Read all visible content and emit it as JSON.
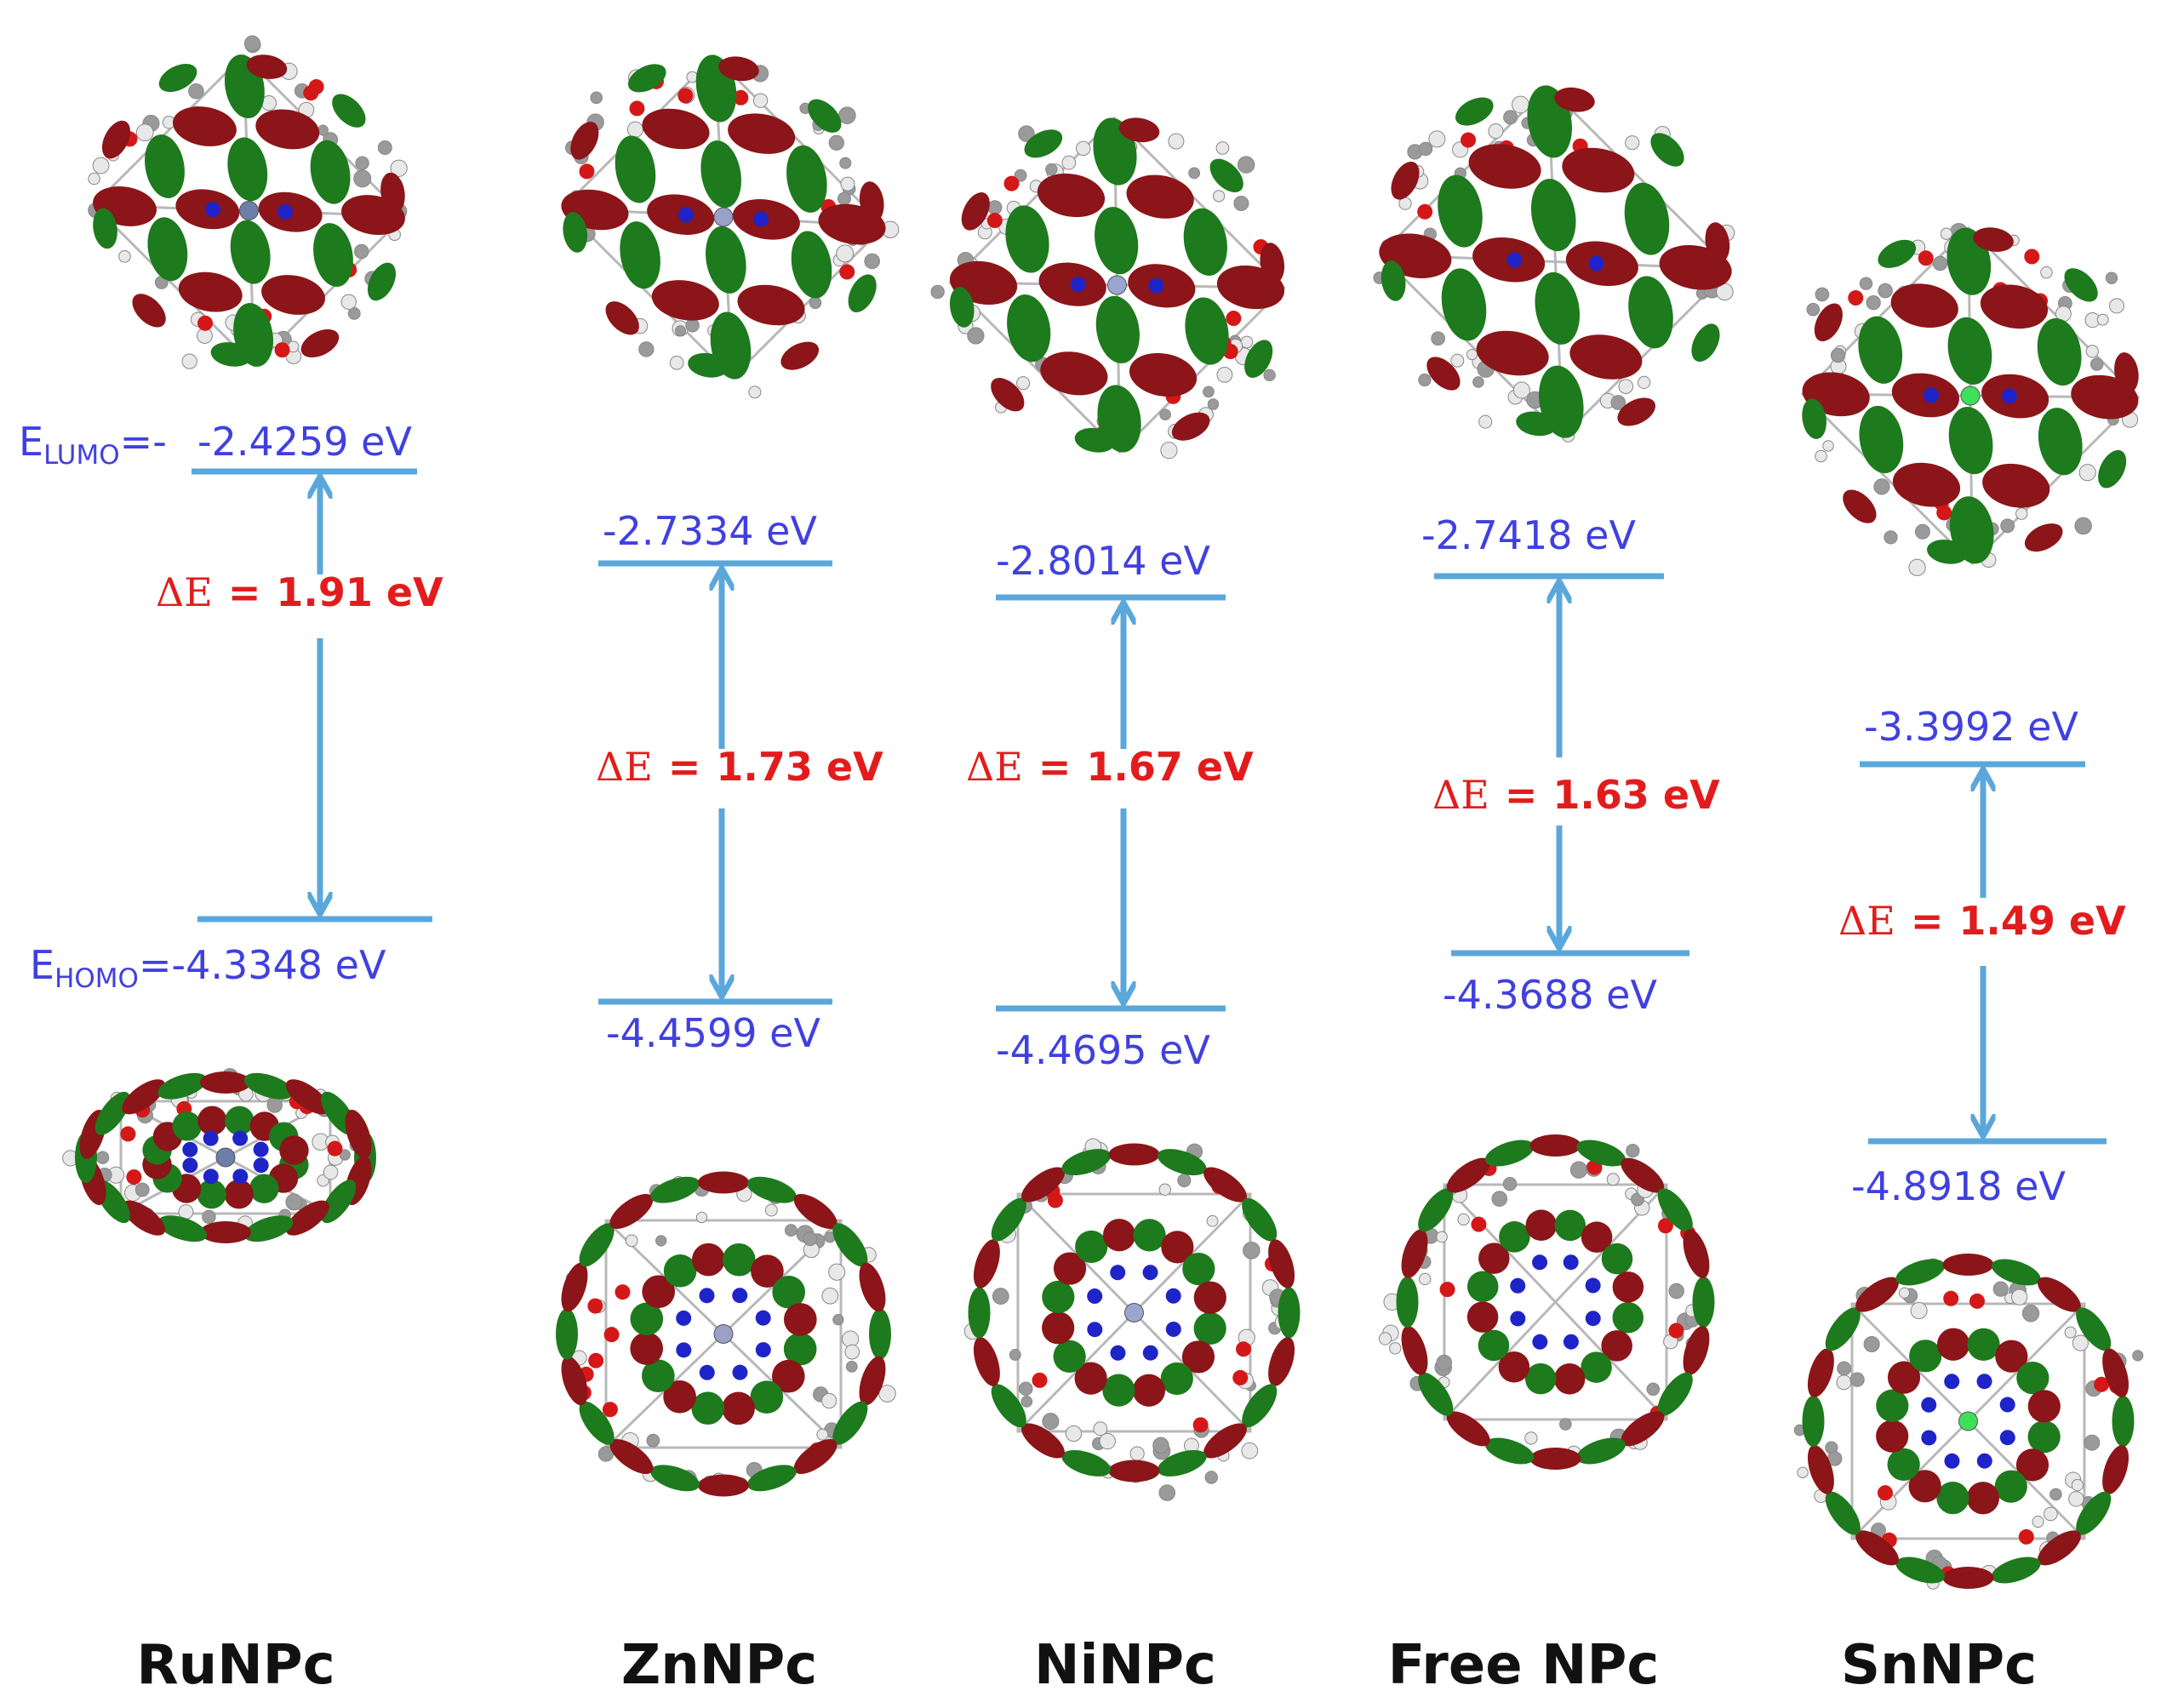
{
  "palette": {
    "level_line": "#5aa7dc",
    "level_text": "#4040e0",
    "gap_text": "#e21c1c",
    "lobe_red": "#8b1518",
    "lobe_green": "#1d7a1d",
    "atom_white": "#e8e8e8",
    "atom_grey": "#9a9a9a",
    "atom_n": "#1f24c9",
    "atom_o": "#d41818",
    "metal": {
      "RuNPc": "#6b7fa8",
      "ZnNPc": "#9aa0c8",
      "NiNPc": "#9aa6d0",
      "Free NPc": "",
      "SnNPc": "#3ee05a"
    }
  },
  "legend": {
    "lumo_prefix": "E",
    "lumo_sub": "LUMO",
    "lumo_eq": "=-",
    "homo_prefix": "E",
    "homo_sub": "HOMO",
    "homo_eq": "="
  },
  "molecules": [
    {
      "name": "RuNPc",
      "lumo": "-2.4259 eV",
      "homo": "-4.3348 eV",
      "delta_symbol": "ΔE",
      "delta_eq": "=",
      "gap": "1.91 eV"
    },
    {
      "name": "ZnNPc",
      "lumo": "-2.7334 eV",
      "homo": "-4.4599 eV",
      "delta_symbol": "ΔE",
      "delta_eq": "=",
      "gap": "1.73 eV"
    },
    {
      "name": "NiNPc",
      "lumo": "-2.8014 eV",
      "homo": "-4.4695 eV",
      "delta_symbol": "ΔE",
      "delta_eq": "=",
      "gap": "1.67 eV"
    },
    {
      "name": "Free NPc",
      "lumo": "-2.7418 eV",
      "homo": "-4.3688 eV",
      "delta_symbol": "ΔE",
      "delta_eq": "=",
      "gap": "1.63 eV"
    },
    {
      "name": "SnNPc",
      "lumo": "-3.3992 eV",
      "homo": "-4.8918 eV",
      "delta_symbol": "ΔE",
      "delta_eq": "=",
      "gap": "1.49 eV"
    }
  ]
}
